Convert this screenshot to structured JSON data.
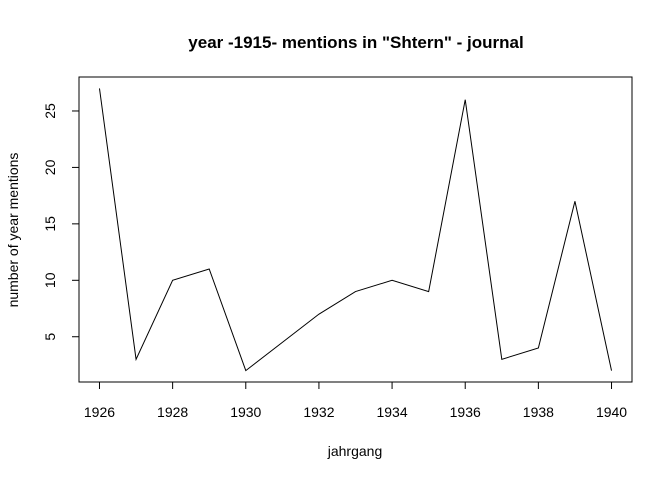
{
  "chart_data": {
    "type": "line",
    "title": "year -1915- mentions in \"Shtern\" - journal",
    "xlabel": "jahrgang",
    "ylabel": "number of year mentions",
    "x": [
      1926,
      1927,
      1928,
      1929,
      1930,
      1931,
      1932,
      1933,
      1934,
      1935,
      1936,
      1937,
      1938,
      1939,
      1940
    ],
    "series": [
      {
        "values": [
          27,
          3,
          10,
          11,
          2,
          4.5,
          7,
          9,
          10,
          9,
          26,
          3,
          4,
          17,
          2
        ]
      }
    ],
    "xticks": [
      1926,
      1928,
      1930,
      1932,
      1934,
      1936,
      1938,
      1940
    ],
    "yticks": [
      5,
      10,
      15,
      20,
      25
    ],
    "xlim": [
      1925.44,
      1940.56
    ],
    "ylim": [
      0.99,
      28.01
    ],
    "line_color": "#000000",
    "grid": false,
    "legend": "none"
  }
}
